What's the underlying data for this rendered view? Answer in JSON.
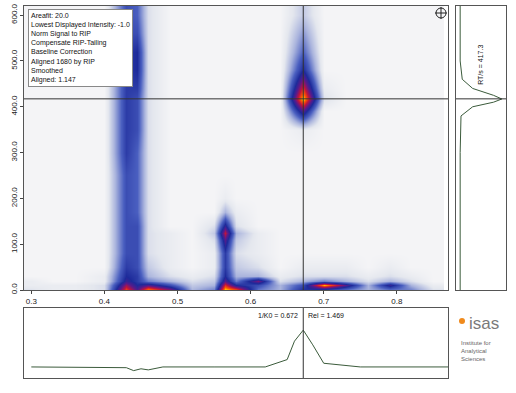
{
  "chart_data": [
    {
      "type": "heatmap",
      "x": [
        0.3,
        0.33,
        0.36,
        0.4,
        0.43,
        0.445,
        0.46,
        0.49,
        0.52,
        0.55,
        0.565,
        0.58,
        0.61,
        0.64,
        0.672,
        0.7,
        0.73,
        0.76,
        0.79,
        0.82,
        0.85
      ],
      "y": [
        0,
        10,
        20,
        30,
        50,
        80,
        110,
        125,
        140,
        170,
        200,
        250,
        300,
        350,
        390,
        417,
        440,
        480,
        520,
        560,
        600
      ],
      "z": [
        [
          0.1,
          0.05,
          0.05,
          0.1,
          0.85,
          0.6,
          0.95,
          0.7,
          0.2,
          0.3,
          1.0,
          0.9,
          0.3,
          0.2,
          0.5,
          0.4,
          0.3,
          0.2,
          0.3,
          0.3,
          0.1
        ],
        [
          0.05,
          0.05,
          0.05,
          0.1,
          0.7,
          0.5,
          0.6,
          0.4,
          0.15,
          0.2,
          0.8,
          0.5,
          0.4,
          0.2,
          0.4,
          0.95,
          0.6,
          0.2,
          0.55,
          0.2,
          0.05
        ],
        [
          0.05,
          0,
          0,
          0.05,
          0.55,
          0.45,
          0.3,
          0.2,
          0.1,
          0.15,
          0.6,
          0.3,
          0.65,
          0.1,
          0.2,
          0.3,
          0.2,
          0.1,
          0.2,
          0.1,
          0
        ],
        [
          0,
          0,
          0,
          0.05,
          0.5,
          0.45,
          0.2,
          0.1,
          0.05,
          0.1,
          0.5,
          0.2,
          0.2,
          0.05,
          0.1,
          0.1,
          0.1,
          0.05,
          0.1,
          0.05,
          0
        ],
        [
          0,
          0,
          0,
          0,
          0.45,
          0.4,
          0.15,
          0.05,
          0,
          0.05,
          0.45,
          0.15,
          0.1,
          0,
          0.05,
          0.05,
          0.05,
          0,
          0.05,
          0,
          0
        ],
        [
          0,
          0,
          0,
          0,
          0.4,
          0.4,
          0.1,
          0.05,
          0,
          0.05,
          0.45,
          0.1,
          0.05,
          0,
          0,
          0,
          0,
          0,
          0,
          0,
          0
        ],
        [
          0,
          0,
          0,
          0,
          0.4,
          0.4,
          0.1,
          0.05,
          0,
          0.1,
          0.6,
          0.15,
          0.05,
          0,
          0,
          0,
          0,
          0,
          0,
          0,
          0
        ],
        [
          0,
          0,
          0,
          0,
          0.4,
          0.4,
          0.1,
          0.05,
          0,
          0.15,
          0.75,
          0.2,
          0.05,
          0,
          0,
          0,
          0,
          0,
          0,
          0,
          0
        ],
        [
          0,
          0,
          0,
          0,
          0.4,
          0.4,
          0.1,
          0,
          0,
          0.1,
          0.55,
          0.1,
          0,
          0,
          0,
          0,
          0,
          0,
          0,
          0,
          0
        ],
        [
          0,
          0,
          0,
          0,
          0.4,
          0.35,
          0.1,
          0,
          0,
          0,
          0.2,
          0.05,
          0,
          0,
          0,
          0,
          0,
          0,
          0,
          0,
          0
        ],
        [
          0,
          0,
          0,
          0,
          0.4,
          0.35,
          0.1,
          0,
          0,
          0,
          0.05,
          0,
          0,
          0,
          0,
          0,
          0,
          0,
          0,
          0,
          0
        ],
        [
          0,
          0,
          0,
          0,
          0.4,
          0.35,
          0.1,
          0,
          0,
          0,
          0,
          0,
          0,
          0,
          0,
          0,
          0,
          0,
          0,
          0,
          0
        ],
        [
          0,
          0,
          0,
          0,
          0.45,
          0.35,
          0.1,
          0,
          0,
          0,
          0,
          0,
          0,
          0,
          0,
          0,
          0,
          0,
          0,
          0,
          0
        ],
        [
          0,
          0,
          0,
          0,
          0.45,
          0.4,
          0.1,
          0,
          0,
          0,
          0,
          0,
          0,
          0,
          0.05,
          0,
          0,
          0,
          0,
          0,
          0
        ],
        [
          0,
          0,
          0,
          0,
          0.45,
          0.4,
          0.1,
          0,
          0,
          0,
          0,
          0,
          0,
          0,
          0.6,
          0,
          0,
          0,
          0,
          0,
          0
        ],
        [
          0,
          0,
          0,
          0,
          0.45,
          0.4,
          0.1,
          0,
          0,
          0,
          0,
          0,
          0,
          0,
          1.0,
          0.1,
          0,
          0,
          0,
          0,
          0
        ],
        [
          0,
          0,
          0,
          0,
          0.45,
          0.45,
          0.1,
          0,
          0,
          0,
          0,
          0,
          0,
          0,
          0.8,
          0.05,
          0,
          0,
          0,
          0,
          0
        ],
        [
          0,
          0,
          0,
          0,
          0.45,
          0.5,
          0.1,
          0,
          0,
          0,
          0,
          0,
          0,
          0,
          0.5,
          0,
          0,
          0,
          0,
          0,
          0
        ],
        [
          0,
          0,
          0,
          0,
          0.45,
          0.5,
          0.1,
          0,
          0,
          0,
          0,
          0,
          0,
          0,
          0.35,
          0,
          0,
          0,
          0,
          0,
          0
        ],
        [
          0,
          0,
          0,
          0,
          0.4,
          0.4,
          0.1,
          0,
          0,
          0,
          0,
          0,
          0,
          0,
          0.25,
          0,
          0,
          0,
          0,
          0,
          0
        ],
        [
          0,
          0,
          0,
          0,
          0.4,
          0.35,
          0.1,
          0,
          0,
          0,
          0,
          0,
          0,
          0,
          0.15,
          0,
          0,
          0,
          0,
          0,
          0
        ]
      ],
      "zlim": [
        0,
        1
      ],
      "xlim": [
        0.29,
        0.87
      ],
      "xticks": [
        0.3,
        0.4,
        0.5,
        0.6,
        0.7,
        0.8
      ],
      "ylim": [
        0,
        620
      ],
      "yticks": [
        {
          "value": 0,
          "label": "0.0"
        },
        {
          "value": 100,
          "label": "100.0"
        },
        {
          "value": 200,
          "label": "200.0"
        },
        {
          "value": 300,
          "label": "300.0"
        },
        {
          "value": 400,
          "label": "400.0"
        },
        {
          "value": 500,
          "label": "500.0"
        },
        {
          "value": 600,
          "label": "600.0"
        }
      ],
      "grid": false,
      "cursor": {
        "x": 0.672,
        "y": 417.3
      },
      "annotations": [
        "Areafit: 20.0",
        "Lowest Displayed Intensity: -1.0",
        "Norm Signal to RIP",
        "Compensate RIP-Tailing",
        "Baseline Correction",
        "Aligned 1680 by RIP",
        "Smoothed",
        "Aligned: 1.147"
      ]
    },
    {
      "type": "line",
      "x": [
        0.3,
        0.4,
        0.43,
        0.44,
        0.45,
        0.46,
        0.48,
        0.55,
        0.62,
        0.65,
        0.66,
        0.672,
        0.685,
        0.7,
        0.75,
        0.87
      ],
      "values": [
        0,
        0,
        -0.02,
        -0.1,
        -0.05,
        -0.08,
        0,
        0,
        0,
        0.2,
        0.7,
        1.0,
        0.6,
        0.1,
        0,
        0
      ],
      "color": "#3b5b3b",
      "xlim": [
        0.29,
        0.87
      ],
      "ylim": [
        -0.3,
        1.6
      ],
      "tick_labels": false,
      "annotations": [
        "1/K0 = 0.672",
        "Rel = 1.469"
      ]
    },
    {
      "type": "line",
      "orientation": "horizontal",
      "y": [
        0,
        100,
        300,
        380,
        400,
        410,
        417,
        425,
        440,
        460,
        500,
        620
      ],
      "values": [
        0,
        0,
        0,
        0.02,
        0.3,
        0.8,
        1.0,
        0.8,
        0.3,
        0.05,
        0,
        0
      ],
      "color": "#3b5b3b",
      "xlim": [
        -0.1,
        1.1
      ],
      "ylim": [
        0,
        620
      ],
      "tick_labels": false,
      "annotations": [
        "RT/s = 417.3"
      ]
    }
  ],
  "logo": {
    "title": "isas",
    "subtitle": "Institute for Analytical Sciences"
  }
}
